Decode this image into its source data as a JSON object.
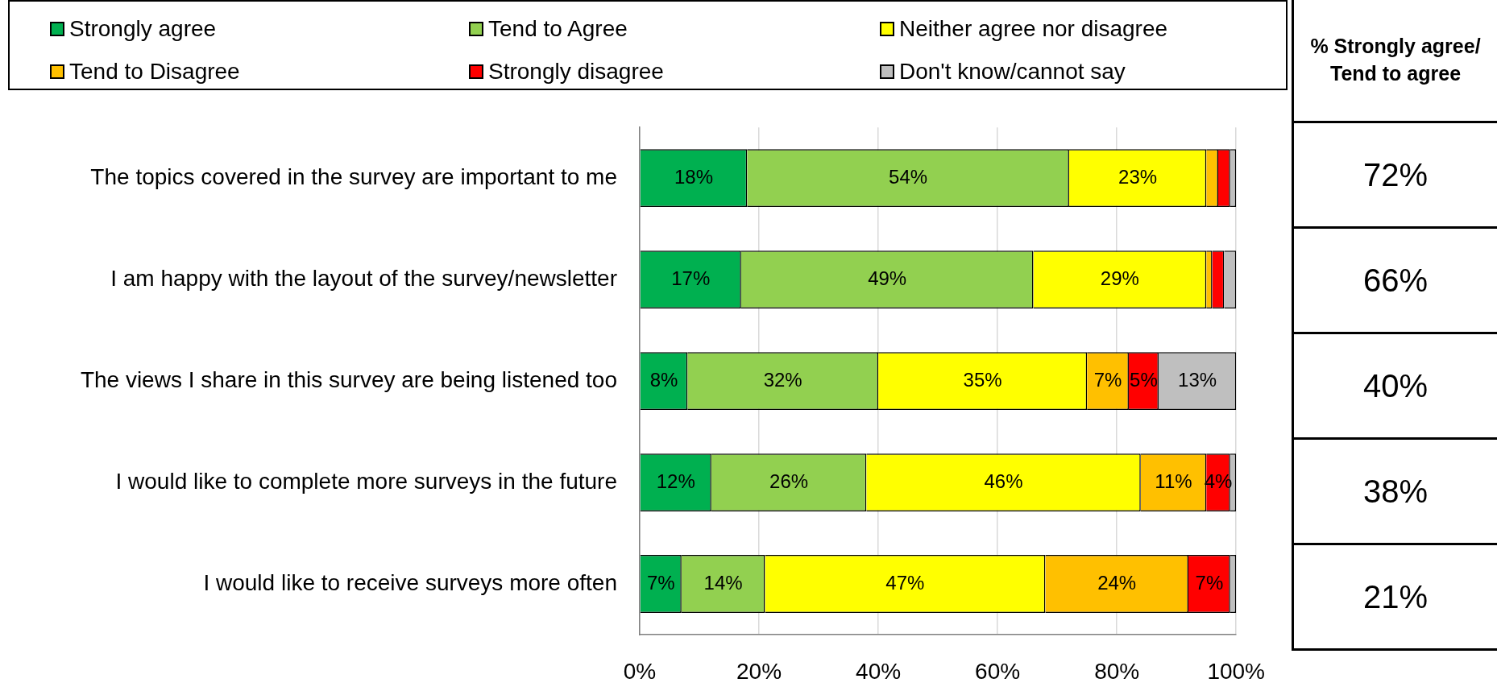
{
  "chart_data": {
    "type": "bar",
    "orientation": "horizontal",
    "stacked": true,
    "categories": [
      "The topics covered in the survey are important to me",
      "I am happy with the layout of the survey/newsletter",
      "The views I share in this survey are being listened too",
      "I would like to complete more surveys in the future",
      "I would like to receive surveys more often"
    ],
    "series": [
      {
        "name": "Strongly agree",
        "color": "#00b050",
        "values": [
          18,
          17,
          8,
          12,
          7
        ],
        "value_labels": [
          "18%",
          "17%",
          "8%",
          "12%",
          "7%"
        ]
      },
      {
        "name": "Tend to Agree",
        "color": "#92d050",
        "values": [
          54,
          49,
          32,
          26,
          14
        ],
        "value_labels": [
          "54%",
          "49%",
          "32%",
          "26%",
          "14%"
        ]
      },
      {
        "name": "Neither agree nor disagree",
        "color": "#ffff00",
        "values": [
          23,
          29,
          35,
          46,
          47
        ],
        "value_labels": [
          "23%",
          "29%",
          "35%",
          "46%",
          "47%"
        ]
      },
      {
        "name": "Tend to Disagree",
        "color": "#ffc000",
        "values": [
          2,
          1,
          7,
          11,
          24
        ],
        "value_labels": [
          null,
          null,
          "7%",
          "11%",
          "24%"
        ]
      },
      {
        "name": "Strongly disagree",
        "color": "#ff0000",
        "values": [
          2,
          2,
          5,
          4,
          7
        ],
        "value_labels": [
          null,
          null,
          "5%",
          "4%",
          "7%"
        ]
      },
      {
        "name": "Don't know/cannot say",
        "color": "#bfbfbf",
        "values": [
          1,
          2,
          13,
          1,
          1
        ],
        "value_labels": [
          null,
          null,
          "13%",
          null,
          null
        ]
      }
    ],
    "xlim": [
      0,
      100
    ],
    "xticks": [
      {
        "value": 0,
        "label": "0%"
      },
      {
        "value": 20,
        "label": "20%"
      },
      {
        "value": 40,
        "label": "40%"
      },
      {
        "value": 60,
        "label": "60%"
      },
      {
        "value": 80,
        "label": "80%"
      },
      {
        "value": 100,
        "label": "100%"
      }
    ],
    "grid": "x",
    "legend": "top",
    "annotations": [
      "% Strongly agree/ Tend to agree",
      "72%",
      "66%",
      "40%",
      "38%",
      "21%"
    ]
  }
}
